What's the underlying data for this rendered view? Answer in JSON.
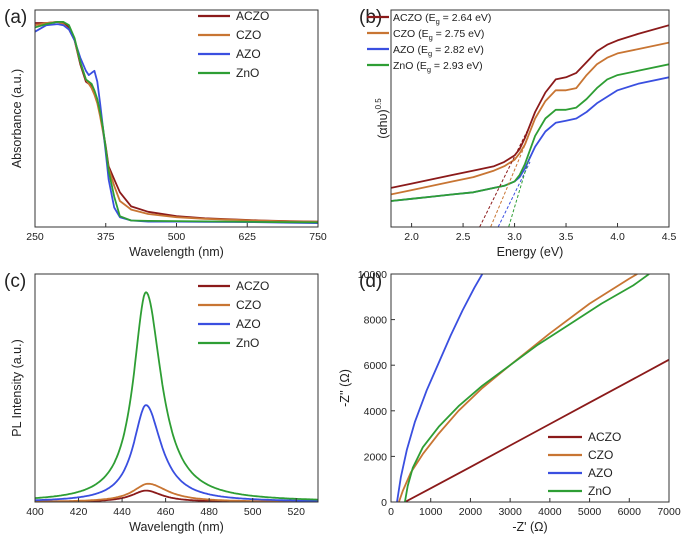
{
  "colors": {
    "ACZO": "#8b1a1a",
    "CZO": "#c87533",
    "AZO": "#3a4fe0",
    "ZnO": "#2e9e34",
    "axis": "#333333"
  },
  "chart_data": [
    {
      "id": "a",
      "panel_label": "(a)",
      "type": "line",
      "title": "",
      "xlabel": "Wavelength (nm)",
      "ylabel": "Absorbance (a.u.)",
      "xlim": [
        250,
        750
      ],
      "ylim": [
        0,
        1.0
      ],
      "xticks": [
        250,
        375,
        500,
        625,
        750
      ],
      "yticks": [],
      "legend_position": "top-right",
      "series": [
        {
          "name": "ACZO",
          "color": "#8b1a1a",
          "x": [
            250,
            270,
            290,
            300,
            310,
            320,
            330,
            340,
            350,
            355,
            360,
            365,
            370,
            375,
            380,
            390,
            400,
            420,
            450,
            500,
            550,
            600,
            650,
            700,
            750
          ],
          "y": [
            0.94,
            0.94,
            0.945,
            0.94,
            0.92,
            0.86,
            0.75,
            0.67,
            0.65,
            0.62,
            0.58,
            0.52,
            0.45,
            0.37,
            0.28,
            0.22,
            0.16,
            0.095,
            0.07,
            0.05,
            0.04,
            0.035,
            0.03,
            0.027,
            0.025
          ]
        },
        {
          "name": "CZO",
          "color": "#c87533",
          "x": [
            250,
            270,
            290,
            300,
            310,
            320,
            330,
            340,
            350,
            355,
            360,
            365,
            370,
            375,
            380,
            390,
            400,
            420,
            450,
            500,
            550,
            600,
            650,
            700,
            750
          ],
          "y": [
            0.93,
            0.94,
            0.945,
            0.935,
            0.91,
            0.86,
            0.76,
            0.68,
            0.64,
            0.61,
            0.57,
            0.51,
            0.44,
            0.36,
            0.27,
            0.19,
            0.12,
            0.08,
            0.06,
            0.045,
            0.038,
            0.033,
            0.029,
            0.026,
            0.024
          ]
        },
        {
          "name": "AZO",
          "color": "#3a4fe0",
          "x": [
            250,
            270,
            290,
            300,
            310,
            320,
            330,
            340,
            345,
            350,
            355,
            360,
            365,
            370,
            375,
            380,
            390,
            400,
            420,
            450,
            500,
            550,
            600,
            650,
            700,
            750
          ],
          "y": [
            0.9,
            0.93,
            0.935,
            0.93,
            0.91,
            0.86,
            0.78,
            0.72,
            0.7,
            0.71,
            0.72,
            0.67,
            0.57,
            0.46,
            0.34,
            0.22,
            0.09,
            0.045,
            0.03,
            0.025,
            0.025,
            0.024,
            0.023,
            0.022,
            0.02,
            0.018
          ]
        },
        {
          "name": "ZnO",
          "color": "#2e9e34",
          "x": [
            250,
            270,
            290,
            300,
            310,
            320,
            330,
            340,
            350,
            355,
            360,
            365,
            370,
            375,
            380,
            390,
            400,
            420,
            450,
            500,
            550,
            600,
            650,
            700,
            750
          ],
          "y": [
            0.92,
            0.935,
            0.945,
            0.945,
            0.93,
            0.87,
            0.76,
            0.68,
            0.66,
            0.63,
            0.59,
            0.53,
            0.46,
            0.36,
            0.26,
            0.14,
            0.05,
            0.03,
            0.028,
            0.027,
            0.026,
            0.025,
            0.023,
            0.022,
            0.021
          ]
        }
      ]
    },
    {
      "id": "b",
      "panel_label": "(b)",
      "type": "line",
      "title": "",
      "xlabel": "Energy (eV)",
      "ylabel_main": "(αhυ)",
      "ylabel_sup": "0.5",
      "xlim": [
        1.8,
        4.5
      ],
      "ylim": [
        0,
        1.0
      ],
      "xticks": [
        2.0,
        2.5,
        3.0,
        3.5,
        4.0,
        4.5
      ],
      "yticks": [],
      "legend_position": "top-left",
      "series": [
        {
          "name": "ACZO",
          "legend_prefix": "ACZO (E",
          "legend_sub": "g",
          "legend_suffix": " = 2.64 eV)",
          "color": "#8b1a1a",
          "x": [
            1.8,
            2.0,
            2.2,
            2.4,
            2.6,
            2.8,
            2.9,
            3.0,
            3.05,
            3.1,
            3.2,
            3.3,
            3.4,
            3.5,
            3.6,
            3.7,
            3.8,
            3.9,
            4.0,
            4.2,
            4.5
          ],
          "y": [
            0.18,
            0.2,
            0.22,
            0.24,
            0.26,
            0.28,
            0.3,
            0.33,
            0.36,
            0.41,
            0.53,
            0.62,
            0.68,
            0.69,
            0.71,
            0.76,
            0.81,
            0.84,
            0.86,
            0.89,
            0.93
          ]
        },
        {
          "name": "CZO",
          "legend_prefix": "CZO (E",
          "legend_sub": "g",
          "legend_suffix": " = 2.75 eV)",
          "color": "#c87533",
          "x": [
            1.8,
            2.0,
            2.2,
            2.4,
            2.6,
            2.8,
            2.9,
            3.0,
            3.05,
            3.1,
            3.2,
            3.3,
            3.4,
            3.5,
            3.6,
            3.7,
            3.8,
            3.9,
            4.0,
            4.2,
            4.5
          ],
          "y": [
            0.15,
            0.17,
            0.19,
            0.21,
            0.23,
            0.26,
            0.28,
            0.31,
            0.34,
            0.38,
            0.5,
            0.58,
            0.63,
            0.63,
            0.64,
            0.7,
            0.75,
            0.78,
            0.8,
            0.82,
            0.85
          ]
        },
        {
          "name": "AZO",
          "legend_prefix": "AZO  (E",
          "legend_sub": "g",
          "legend_suffix": " = 2.82 eV)",
          "color": "#3a4fe0",
          "x": [
            1.8,
            2.0,
            2.2,
            2.4,
            2.6,
            2.8,
            2.9,
            3.0,
            3.05,
            3.1,
            3.2,
            3.3,
            3.4,
            3.5,
            3.6,
            3.7,
            3.8,
            3.9,
            4.0,
            4.2,
            4.5
          ],
          "y": [
            0.12,
            0.13,
            0.14,
            0.15,
            0.16,
            0.18,
            0.19,
            0.21,
            0.23,
            0.27,
            0.37,
            0.44,
            0.48,
            0.49,
            0.5,
            0.53,
            0.57,
            0.6,
            0.63,
            0.66,
            0.69
          ]
        },
        {
          "name": "ZnO",
          "legend_prefix": "ZnO  (E",
          "legend_sub": "g",
          "legend_suffix": " = 2.93 eV)",
          "color": "#2e9e34",
          "x": [
            1.8,
            2.0,
            2.2,
            2.4,
            2.6,
            2.8,
            2.9,
            3.0,
            3.05,
            3.1,
            3.2,
            3.3,
            3.4,
            3.5,
            3.6,
            3.7,
            3.8,
            3.9,
            4.0,
            4.2,
            4.5
          ],
          "y": [
            0.12,
            0.13,
            0.14,
            0.15,
            0.16,
            0.18,
            0.19,
            0.21,
            0.24,
            0.29,
            0.42,
            0.5,
            0.54,
            0.54,
            0.55,
            0.59,
            0.64,
            0.68,
            0.7,
            0.72,
            0.75
          ]
        }
      ],
      "tangent_lines": [
        {
          "series": "ACZO",
          "x": [
            2.64,
            3.12
          ],
          "y": [
            -0.02,
            0.44
          ]
        },
        {
          "series": "CZO",
          "x": [
            2.75,
            3.13
          ],
          "y": [
            -0.02,
            0.41
          ]
        },
        {
          "series": "AZO",
          "x": [
            2.82,
            3.15
          ],
          "y": [
            -0.02,
            0.3
          ]
        },
        {
          "series": "ZnO",
          "x": [
            2.93,
            3.15
          ],
          "y": [
            -0.02,
            0.33
          ]
        }
      ]
    },
    {
      "id": "c",
      "panel_label": "(c)",
      "type": "line",
      "title": "",
      "xlabel": "Wavelength (nm)",
      "ylabel": "PL Intensity (a.u.)",
      "xlim": [
        400,
        530
      ],
      "ylim": [
        0,
        1.0
      ],
      "xticks": [
        400,
        420,
        440,
        460,
        480,
        500,
        520
      ],
      "yticks": [],
      "legend_position": "top-right",
      "series": [
        {
          "name": "ACZO",
          "color": "#8b1a1a",
          "peak": 451,
          "height": 0.05,
          "width_left": 16,
          "width_right": 18,
          "base": 0.0
        },
        {
          "name": "CZO",
          "color": "#c87533",
          "peak": 452,
          "height": 0.08,
          "width_left": 17,
          "width_right": 22,
          "base": 0.0
        },
        {
          "name": "AZO",
          "color": "#3a4fe0",
          "peak": 451,
          "height": 0.425,
          "width_left": 14,
          "width_right": 17,
          "base": 0.0
        },
        {
          "name": "ZnO",
          "color": "#2e9e34",
          "peak": 451,
          "height": 0.92,
          "width_left": 14,
          "width_right": 17,
          "base": 0.0
        }
      ]
    },
    {
      "id": "d",
      "panel_label": "(d)",
      "type": "line",
      "title": "",
      "xlabel": "-Z' (Ω)",
      "ylabel": "-Z'' (Ω)",
      "xlim": [
        0,
        7000
      ],
      "ylim": [
        0,
        10000
      ],
      "xticks": [
        0,
        1000,
        2000,
        3000,
        4000,
        5000,
        6000,
        7000
      ],
      "yticks": [
        0,
        2000,
        4000,
        6000,
        8000,
        10000
      ],
      "legend_position": "bottom-right",
      "series": [
        {
          "name": "ACZO",
          "color": "#8b1a1a",
          "x": [
            350,
            1000,
            2000,
            3000,
            4000,
            5000,
            6000,
            7000
          ],
          "y": [
            0,
            600,
            1530,
            2480,
            3420,
            4360,
            5300,
            6240
          ]
        },
        {
          "name": "CZO",
          "color": "#c87533",
          "x": [
            200,
            300,
            500,
            800,
            1200,
            1700,
            2300,
            3000,
            4000,
            5000,
            6000,
            6200
          ],
          "y": [
            0,
            500,
            1300,
            2100,
            3000,
            4000,
            5000,
            6000,
            7400,
            8700,
            9800,
            10000
          ]
        },
        {
          "name": "AZO",
          "color": "#3a4fe0",
          "x": [
            150,
            250,
            400,
            600,
            900,
            1200,
            1500,
            1800,
            2100,
            2300
          ],
          "y": [
            0,
            1100,
            2300,
            3500,
            4900,
            6100,
            7300,
            8400,
            9400,
            10000
          ]
        },
        {
          "name": "ZnO",
          "color": "#2e9e34",
          "x": [
            350,
            420,
            550,
            800,
            1200,
            1700,
            2300,
            3000,
            3700,
            4500,
            5300,
            6100,
            6500
          ],
          "y": [
            0,
            700,
            1500,
            2400,
            3300,
            4200,
            5100,
            6000,
            6900,
            7800,
            8700,
            9500,
            10000
          ]
        }
      ]
    }
  ]
}
